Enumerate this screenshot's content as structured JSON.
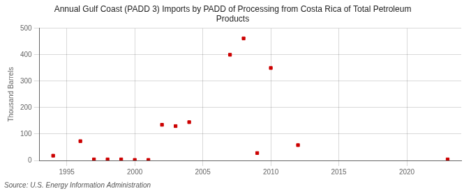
{
  "chart_data": {
    "type": "scatter",
    "title": "Annual Gulf Coast (PADD 3) Imports by PADD of Processing from Costa Rica of Total Petroleum\nProducts",
    "y_label": "Thousand Barrels",
    "source": "Source: U.S. Energy Information Administration",
    "x": [
      1994,
      1996,
      1997,
      1998,
      1999,
      2000,
      2001,
      2002,
      2003,
      2004,
      2007,
      2008,
      2009,
      2010,
      2012,
      2023
    ],
    "values": [
      18,
      73,
      4,
      4,
      4,
      2,
      2,
      135,
      130,
      145,
      400,
      462,
      28,
      350,
      58,
      4
    ],
    "color": "#cc0000",
    "marker": "square",
    "xlim": [
      1993,
      2024
    ],
    "ylim": [
      0,
      500
    ],
    "xticks": [
      1995,
      2000,
      2005,
      2010,
      2015,
      2020
    ],
    "yticks": [
      0,
      100,
      200,
      300,
      400,
      500
    ],
    "grid": true
  }
}
